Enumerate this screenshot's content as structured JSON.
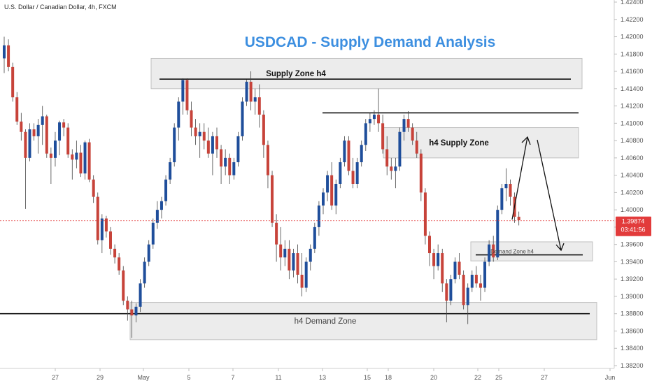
{
  "header": {
    "symbol_line": "U.S. Dollar / Canadian Dollar, 4h, FXCM",
    "analysis_title": "USDCAD - Supply Demand Analysis"
  },
  "colors": {
    "bull": "#1f4e9b",
    "bear": "#c7433a",
    "zone_fill": "#ececec",
    "zone_stroke": "#bfbfbf",
    "title": "#3d8fe0",
    "price_badge": "#e23b3b",
    "current_price_line": "#e23b3b"
  },
  "annotations": {
    "zones": [
      {
        "label": "Supply Zone h4",
        "top": 1.4175,
        "bottom": 1.414
      },
      {
        "label": "h4 Supply Zone",
        "top": 1.4095,
        "bottom": 1.406
      },
      {
        "label": "Demand Zone h4",
        "top": 1.3963,
        "bottom": 1.3941
      },
      {
        "label": "h4 Demand Zone",
        "top": 1.3893,
        "bottom": 1.385
      }
    ],
    "lines": [
      {
        "name": "supply-level-line-1",
        "price": 1.4151
      },
      {
        "name": "supply-level-line-2",
        "price": 1.4112
      },
      {
        "name": "demand-level-line-1",
        "price": 1.3948
      },
      {
        "name": "demand-level-line-2",
        "price": 1.388
      }
    ]
  },
  "price_badge": {
    "price": "1.39874",
    "countdown": "03:41:56"
  },
  "chart_data": {
    "type": "candlestick",
    "symbol": "USDCAD",
    "timeframe": "4h",
    "y_axis": {
      "ticks": [
        "1.42400",
        "1.42200",
        "1.42000",
        "1.41800",
        "1.41600",
        "1.41400",
        "1.41200",
        "1.41000",
        "1.40800",
        "1.40600",
        "1.40400",
        "1.40200",
        "1.40000",
        "1.39800",
        "1.39600",
        "1.39400",
        "1.39200",
        "1.39000",
        "1.38800",
        "1.38600",
        "1.38400",
        "1.38200"
      ],
      "range": [
        1.382,
        1.424
      ]
    },
    "x_axis": {
      "ticks": [
        "27",
        "29",
        "May",
        "5",
        "7",
        "11",
        "13",
        "15",
        "18",
        "20",
        "22",
        "25",
        "27",
        "Jun"
      ]
    },
    "current_price": 1.39874,
    "candles": [
      [
        1.4175,
        1.42,
        1.4158,
        1.419
      ],
      [
        1.419,
        1.4197,
        1.416,
        1.4165
      ],
      [
        1.4165,
        1.417,
        1.4125,
        1.413
      ],
      [
        1.413,
        1.4136,
        1.4098,
        1.4102
      ],
      [
        1.4102,
        1.4112,
        1.408,
        1.409
      ],
      [
        1.409,
        1.4093,
        1.4001,
        1.406
      ],
      [
        1.406,
        1.41,
        1.4056,
        1.4093
      ],
      [
        1.4093,
        1.41,
        1.408,
        1.4085
      ],
      [
        1.4085,
        1.4105,
        1.4065,
        1.4098
      ],
      [
        1.4098,
        1.412,
        1.4075,
        1.4108
      ],
      [
        1.4108,
        1.411,
        1.406,
        1.4065
      ],
      [
        1.4065,
        1.4072,
        1.403,
        1.406
      ],
      [
        1.406,
        1.409,
        1.405,
        1.408
      ],
      [
        1.408,
        1.4103,
        1.4063,
        1.4101
      ],
      [
        1.4101,
        1.4105,
        1.4085,
        1.4095
      ],
      [
        1.4095,
        1.41,
        1.406,
        1.4064
      ],
      [
        1.4064,
        1.407,
        1.4035,
        1.4058
      ],
      [
        1.4058,
        1.408,
        1.4048,
        1.4066
      ],
      [
        1.4066,
        1.4075,
        1.4038,
        1.4042
      ],
      [
        1.4042,
        1.408,
        1.4035,
        1.4078
      ],
      [
        1.4078,
        1.4082,
        1.4032,
        1.4035
      ],
      [
        1.4035,
        1.404,
        1.4008,
        1.4015
      ],
      [
        1.4015,
        1.402,
        1.396,
        1.3965
      ],
      [
        1.3965,
        1.3995,
        1.395,
        1.399
      ],
      [
        1.399,
        1.3993,
        1.3968,
        1.3975
      ],
      [
        1.3975,
        1.398,
        1.3948,
        1.3955
      ],
      [
        1.3955,
        1.396,
        1.3938,
        1.3945
      ],
      [
        1.3945,
        1.395,
        1.3925,
        1.393
      ],
      [
        1.393,
        1.3935,
        1.389,
        1.3895
      ],
      [
        1.3895,
        1.39,
        1.3872,
        1.3885
      ],
      [
        1.3885,
        1.3895,
        1.3852,
        1.3878
      ],
      [
        1.3878,
        1.3892,
        1.387,
        1.3888
      ],
      [
        1.3888,
        1.392,
        1.3882,
        1.3915
      ],
      [
        1.3915,
        1.3945,
        1.391,
        1.394
      ],
      [
        1.394,
        1.3965,
        1.3935,
        1.396
      ],
      [
        1.396,
        1.399,
        1.3955,
        1.3985
      ],
      [
        1.3985,
        1.401,
        1.3978,
        1.4
      ],
      [
        1.4,
        1.4015,
        1.399,
        1.401
      ],
      [
        1.401,
        1.404,
        1.4005,
        1.4035
      ],
      [
        1.4035,
        1.406,
        1.403,
        1.4055
      ],
      [
        1.4055,
        1.41,
        1.405,
        1.4095
      ],
      [
        1.4095,
        1.413,
        1.408,
        1.4125
      ],
      [
        1.4125,
        1.4152,
        1.411,
        1.415
      ],
      [
        1.415,
        1.4152,
        1.411,
        1.4115
      ],
      [
        1.4115,
        1.4125,
        1.4085,
        1.4095
      ],
      [
        1.4095,
        1.4105,
        1.4075,
        1.4085
      ],
      [
        1.4085,
        1.41,
        1.406,
        1.409
      ],
      [
        1.409,
        1.41,
        1.407,
        1.408
      ],
      [
        1.408,
        1.4095,
        1.406,
        1.4065
      ],
      [
        1.4065,
        1.409,
        1.404,
        1.4085
      ],
      [
        1.4085,
        1.4095,
        1.406,
        1.407
      ],
      [
        1.407,
        1.4075,
        1.403,
        1.405
      ],
      [
        1.405,
        1.407,
        1.404,
        1.406
      ],
      [
        1.406,
        1.4065,
        1.403,
        1.404
      ],
      [
        1.404,
        1.406,
        1.4035,
        1.4055
      ],
      [
        1.4055,
        1.409,
        1.405,
        1.4085
      ],
      [
        1.4085,
        1.413,
        1.408,
        1.4125
      ],
      [
        1.4125,
        1.415,
        1.412,
        1.4148
      ],
      [
        1.4148,
        1.416,
        1.4115,
        1.4125
      ],
      [
        1.4125,
        1.414,
        1.411,
        1.413
      ],
      [
        1.413,
        1.4145,
        1.4095,
        1.411
      ],
      [
        1.411,
        1.4115,
        1.406,
        1.4075
      ],
      [
        1.4075,
        1.408,
        1.4025,
        1.404
      ],
      [
        1.404,
        1.4045,
        1.398,
        1.3985
      ],
      [
        1.3985,
        1.3995,
        1.394,
        1.396
      ],
      [
        1.396,
        1.398,
        1.393,
        1.3945
      ],
      [
        1.3945,
        1.3965,
        1.3935,
        1.3955
      ],
      [
        1.3955,
        1.3965,
        1.392,
        1.393
      ],
      [
        1.393,
        1.3955,
        1.3922,
        1.395
      ],
      [
        1.395,
        1.396,
        1.3915,
        1.3925
      ],
      [
        1.3925,
        1.395,
        1.39,
        1.391
      ],
      [
        1.391,
        1.3945,
        1.3905,
        1.394
      ],
      [
        1.394,
        1.396,
        1.393,
        1.3955
      ],
      [
        1.3955,
        1.3985,
        1.395,
        1.398
      ],
      [
        1.398,
        1.401,
        1.397,
        1.4005
      ],
      [
        1.4005,
        1.4025,
        1.3995,
        1.402
      ],
      [
        1.402,
        1.4045,
        1.401,
        1.404
      ],
      [
        1.404,
        1.4055,
        1.4,
        1.4005
      ],
      [
        1.4005,
        1.4035,
        1.3995,
        1.403
      ],
      [
        1.403,
        1.406,
        1.4025,
        1.4055
      ],
      [
        1.4055,
        1.4085,
        1.405,
        1.408
      ],
      [
        1.408,
        1.4085,
        1.404,
        1.4045
      ],
      [
        1.4045,
        1.406,
        1.4025,
        1.403
      ],
      [
        1.403,
        1.406,
        1.4025,
        1.4055
      ],
      [
        1.4055,
        1.408,
        1.405,
        1.4075
      ],
      [
        1.4075,
        1.4105,
        1.4068,
        1.41
      ],
      [
        1.41,
        1.4112,
        1.409,
        1.4105
      ],
      [
        1.4105,
        1.4115,
        1.4098,
        1.411
      ],
      [
        1.411,
        1.414,
        1.409,
        1.41
      ],
      [
        1.41,
        1.411,
        1.4065,
        1.407
      ],
      [
        1.407,
        1.4085,
        1.404,
        1.405
      ],
      [
        1.405,
        1.406,
        1.4035,
        1.4045
      ],
      [
        1.4045,
        1.406,
        1.4025,
        1.405
      ],
      [
        1.405,
        1.4095,
        1.4045,
        1.409
      ],
      [
        1.409,
        1.411,
        1.408,
        1.4105
      ],
      [
        1.4105,
        1.4114,
        1.409,
        1.4095
      ],
      [
        1.4095,
        1.41,
        1.4075,
        1.408
      ],
      [
        1.408,
        1.409,
        1.406,
        1.4065
      ],
      [
        1.4065,
        1.407,
        1.401,
        1.402
      ],
      [
        1.402,
        1.4025,
        1.396,
        1.397
      ],
      [
        1.397,
        1.3975,
        1.3935,
        1.395
      ],
      [
        1.395,
        1.3955,
        1.392,
        1.3935
      ],
      [
        1.3935,
        1.396,
        1.393,
        1.395
      ],
      [
        1.395,
        1.3955,
        1.3905,
        1.3915
      ],
      [
        1.3915,
        1.392,
        1.387,
        1.3895
      ],
      [
        1.3895,
        1.3925,
        1.389,
        1.392
      ],
      [
        1.392,
        1.3945,
        1.3915,
        1.394
      ],
      [
        1.394,
        1.395,
        1.392,
        1.3925
      ],
      [
        1.3925,
        1.393,
        1.3885,
        1.389
      ],
      [
        1.389,
        1.3915,
        1.3868,
        1.391
      ],
      [
        1.391,
        1.393,
        1.3905,
        1.3925
      ],
      [
        1.3925,
        1.3935,
        1.391,
        1.3915
      ],
      [
        1.3915,
        1.3925,
        1.3895,
        1.391
      ],
      [
        1.391,
        1.3945,
        1.3905,
        1.394
      ],
      [
        1.394,
        1.3965,
        1.3935,
        1.396
      ],
      [
        1.396,
        1.397,
        1.394,
        1.3945
      ],
      [
        1.3945,
        1.4005,
        1.3942,
        1.4
      ],
      [
        1.4,
        1.403,
        1.3995,
        1.4025
      ],
      [
        1.4025,
        1.4048,
        1.401,
        1.403
      ],
      [
        1.403,
        1.4035,
        1.4005,
        1.4015
      ],
      [
        1.4015,
        1.402,
        1.3985,
        1.3992
      ],
      [
        1.3992,
        1.3998,
        1.3982,
        1.3988
      ]
    ]
  }
}
